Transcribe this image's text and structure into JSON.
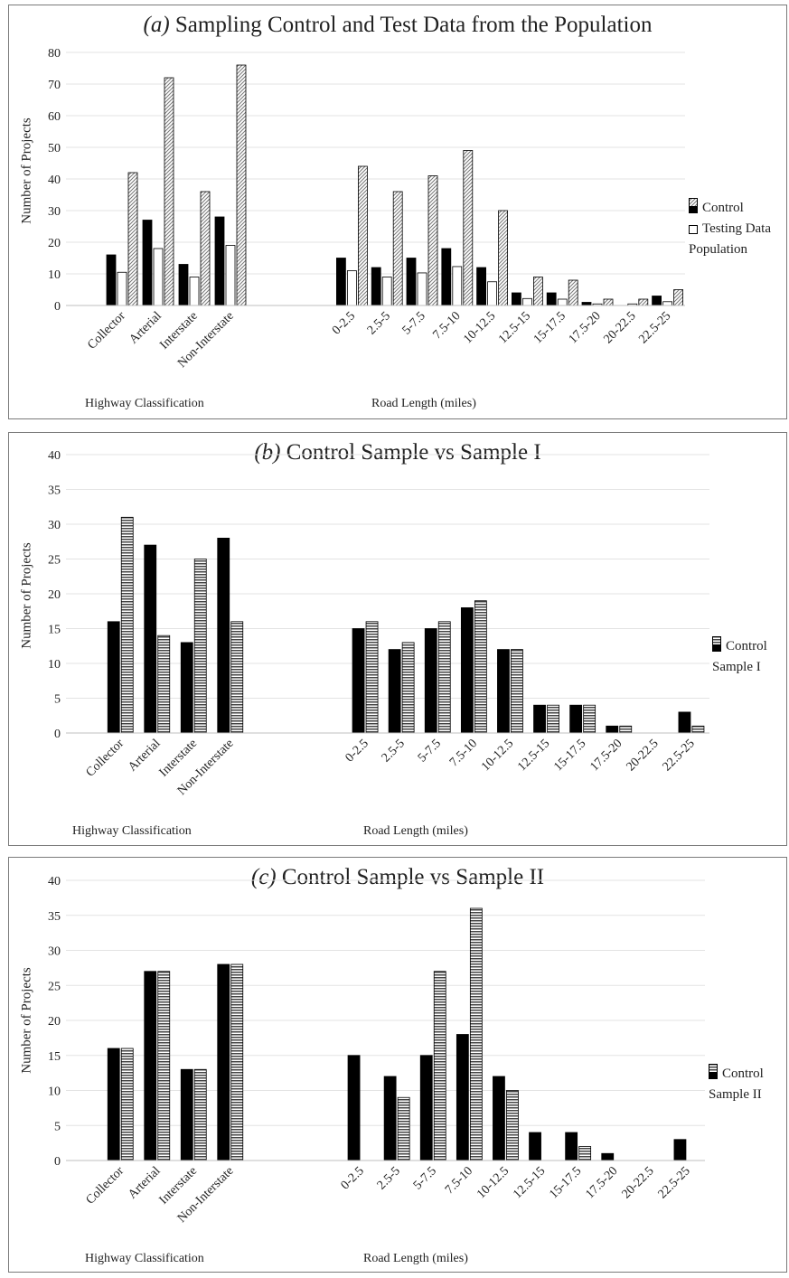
{
  "chart_data": [
    {
      "type": "bar",
      "title_letter": "(a)",
      "title": "Sampling Control and Test Data from the Population",
      "ylabel": "Number of Projects",
      "ylim": [
        0,
        80
      ],
      "yticks": [
        0,
        10,
        20,
        30,
        40,
        50,
        60,
        70,
        80
      ],
      "grid": true,
      "legend_position": "right",
      "groups": [
        {
          "label": "Highway Classification",
          "categories": [
            "Collector",
            "Arterial",
            "Interstate",
            "Non-Interstate"
          ],
          "series": [
            {
              "name": "Control",
              "values": [
                16,
                27,
                13,
                28
              ]
            },
            {
              "name": "Testing Data",
              "values": [
                10.5,
                18,
                9,
                19
              ]
            },
            {
              "name": "Population",
              "values": [
                42,
                72,
                36,
                76
              ]
            }
          ]
        },
        {
          "label": "Road Length (miles)",
          "categories": [
            "0-2.5",
            "2.5-5",
            "5-7.5",
            "7.5-10",
            "10-12.5",
            "12.5-15",
            "15-17.5",
            "17.5-20",
            "20-22.5",
            "22.5-25"
          ],
          "series": [
            {
              "name": "Control",
              "values": [
                15,
                12,
                15,
                18,
                12,
                4,
                4,
                1,
                0,
                3
              ]
            },
            {
              "name": "Testing Data",
              "values": [
                11,
                9,
                10.3,
                12.3,
                7.5,
                2.2,
                2,
                0.5,
                0.5,
                1.2
              ]
            },
            {
              "name": "Population",
              "values": [
                44,
                36,
                41,
                49,
                30,
                9,
                8,
                2,
                2,
                5
              ]
            }
          ]
        }
      ]
    },
    {
      "type": "bar",
      "title_letter": "(b)",
      "title": "Control Sample vs Sample I",
      "ylabel": "Number of Projects",
      "ylim": [
        0,
        40
      ],
      "yticks": [
        0,
        5,
        10,
        15,
        20,
        25,
        30,
        35,
        40
      ],
      "grid": true,
      "legend_position": "right",
      "groups": [
        {
          "label": "Highway Classification",
          "categories": [
            "Collector",
            "Arterial",
            "Interstate",
            "Non-Interstate"
          ],
          "series": [
            {
              "name": "Control",
              "values": [
                16,
                27,
                13,
                28
              ]
            },
            {
              "name": "Sample I",
              "values": [
                31,
                14,
                25,
                16
              ]
            }
          ]
        },
        {
          "label": "Road Length (miles)",
          "categories": [
            "0-2.5",
            "2.5-5",
            "5-7.5",
            "7.5-10",
            "10-12.5",
            "12.5-15",
            "15-17.5",
            "17.5-20",
            "20-22.5",
            "22.5-25"
          ],
          "series": [
            {
              "name": "Control",
              "values": [
                15,
                12,
                15,
                18,
                12,
                4,
                4,
                1,
                0,
                3
              ]
            },
            {
              "name": "Sample I",
              "values": [
                16,
                13,
                16,
                19,
                12,
                4,
                4,
                1,
                0,
                1
              ]
            }
          ]
        }
      ]
    },
    {
      "type": "bar",
      "title_letter": "(c)",
      "title": "Control Sample vs Sample II",
      "ylabel": "Number of Projects",
      "ylim": [
        0,
        40
      ],
      "yticks": [
        0,
        5,
        10,
        15,
        20,
        25,
        30,
        35,
        40
      ],
      "grid": true,
      "legend_position": "right",
      "groups": [
        {
          "label": "Highway Classification",
          "categories": [
            "Collector",
            "Arterial",
            "Interstate",
            "Non-Interstate"
          ],
          "series": [
            {
              "name": "Control",
              "values": [
                16,
                27,
                13,
                28
              ]
            },
            {
              "name": "Sample II",
              "values": [
                16,
                27,
                13,
                28
              ]
            }
          ]
        },
        {
          "label": "Road Length (miles)",
          "categories": [
            "0-2.5",
            "2.5-5",
            "5-7.5",
            "7.5-10",
            "10-12.5",
            "12.5-15",
            "15-17.5",
            "17.5-20",
            "20-22.5",
            "22.5-25"
          ],
          "series": [
            {
              "name": "Control",
              "values": [
                15,
                12,
                15,
                18,
                12,
                4,
                4,
                1,
                0,
                3
              ]
            },
            {
              "name": "Sample II",
              "values": [
                0,
                9,
                27,
                36,
                10,
                0,
                2,
                0,
                0,
                0
              ]
            }
          ]
        }
      ]
    }
  ]
}
